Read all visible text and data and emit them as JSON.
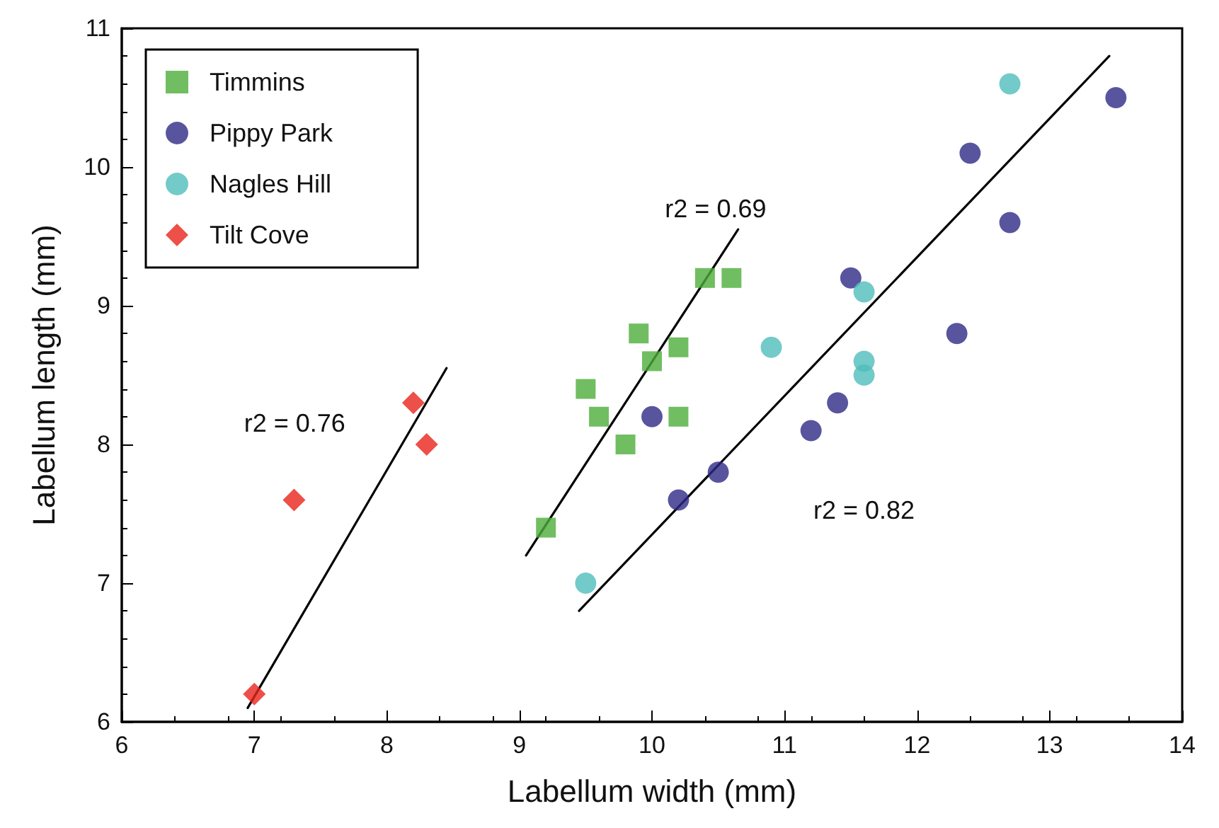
{
  "chart_data": {
    "type": "scatter",
    "xlabel": "Labellum width (mm)",
    "ylabel": "Labellum length (mm)",
    "xlim": [
      6,
      14
    ],
    "xticks": [
      6,
      7,
      8,
      9,
      10,
      11,
      12,
      13,
      14
    ],
    "ylim": [
      6,
      11
    ],
    "yticks": [
      6,
      7,
      8,
      9,
      10,
      11
    ],
    "grid": false,
    "legend": "top left",
    "series": [
      {
        "name": "Timmins",
        "color": "#4cae3a",
        "marker": "square",
        "x": [
          9.2,
          9.5,
          9.6,
          9.8,
          9.9,
          10.0,
          10.2,
          10.2,
          10.4,
          10.6
        ],
        "values": [
          7.4,
          8.4,
          8.2,
          8.0,
          8.8,
          8.6,
          8.7,
          8.2,
          9.2,
          9.2
        ]
      },
      {
        "name": "Pippy Park",
        "color": "#2e2a86",
        "marker": "circle",
        "x": [
          10.0,
          10.2,
          10.5,
          11.2,
          11.4,
          11.5,
          12.3,
          12.4,
          12.7,
          13.5
        ],
        "values": [
          8.2,
          7.6,
          7.8,
          8.1,
          8.3,
          9.2,
          8.8,
          10.1,
          9.6,
          10.5
        ]
      },
      {
        "name": "Nagles Hill",
        "color": "#4fbdbc",
        "marker": "circle",
        "x": [
          9.5,
          10.9,
          11.6,
          11.6,
          11.6,
          12.7
        ],
        "values": [
          7.0,
          8.7,
          9.1,
          8.6,
          8.5,
          10.6
        ]
      },
      {
        "name": "Tilt Cove",
        "color": "#e8231b",
        "marker": "diamond",
        "x": [
          7.0,
          7.3,
          8.2,
          8.3
        ],
        "values": [
          6.2,
          7.6,
          8.3,
          8.0
        ]
      },
      {
        "type": "line",
        "color": "#000000",
        "marker": "none",
        "x": [
          6.95,
          8.45
        ],
        "values": [
          6.1,
          8.55
        ]
      },
      {
        "type": "line",
        "color": "#000000",
        "marker": "none",
        "x": [
          9.05,
          10.65
        ],
        "values": [
          7.2,
          9.55
        ]
      },
      {
        "type": "line",
        "color": "#000000",
        "marker": "none",
        "x": [
          9.45,
          13.45
        ],
        "values": [
          6.8,
          10.8
        ]
      }
    ],
    "annotations": [
      "r2 = 0.76",
      "r2 = 0.69",
      "r2 = 0.82"
    ]
  }
}
